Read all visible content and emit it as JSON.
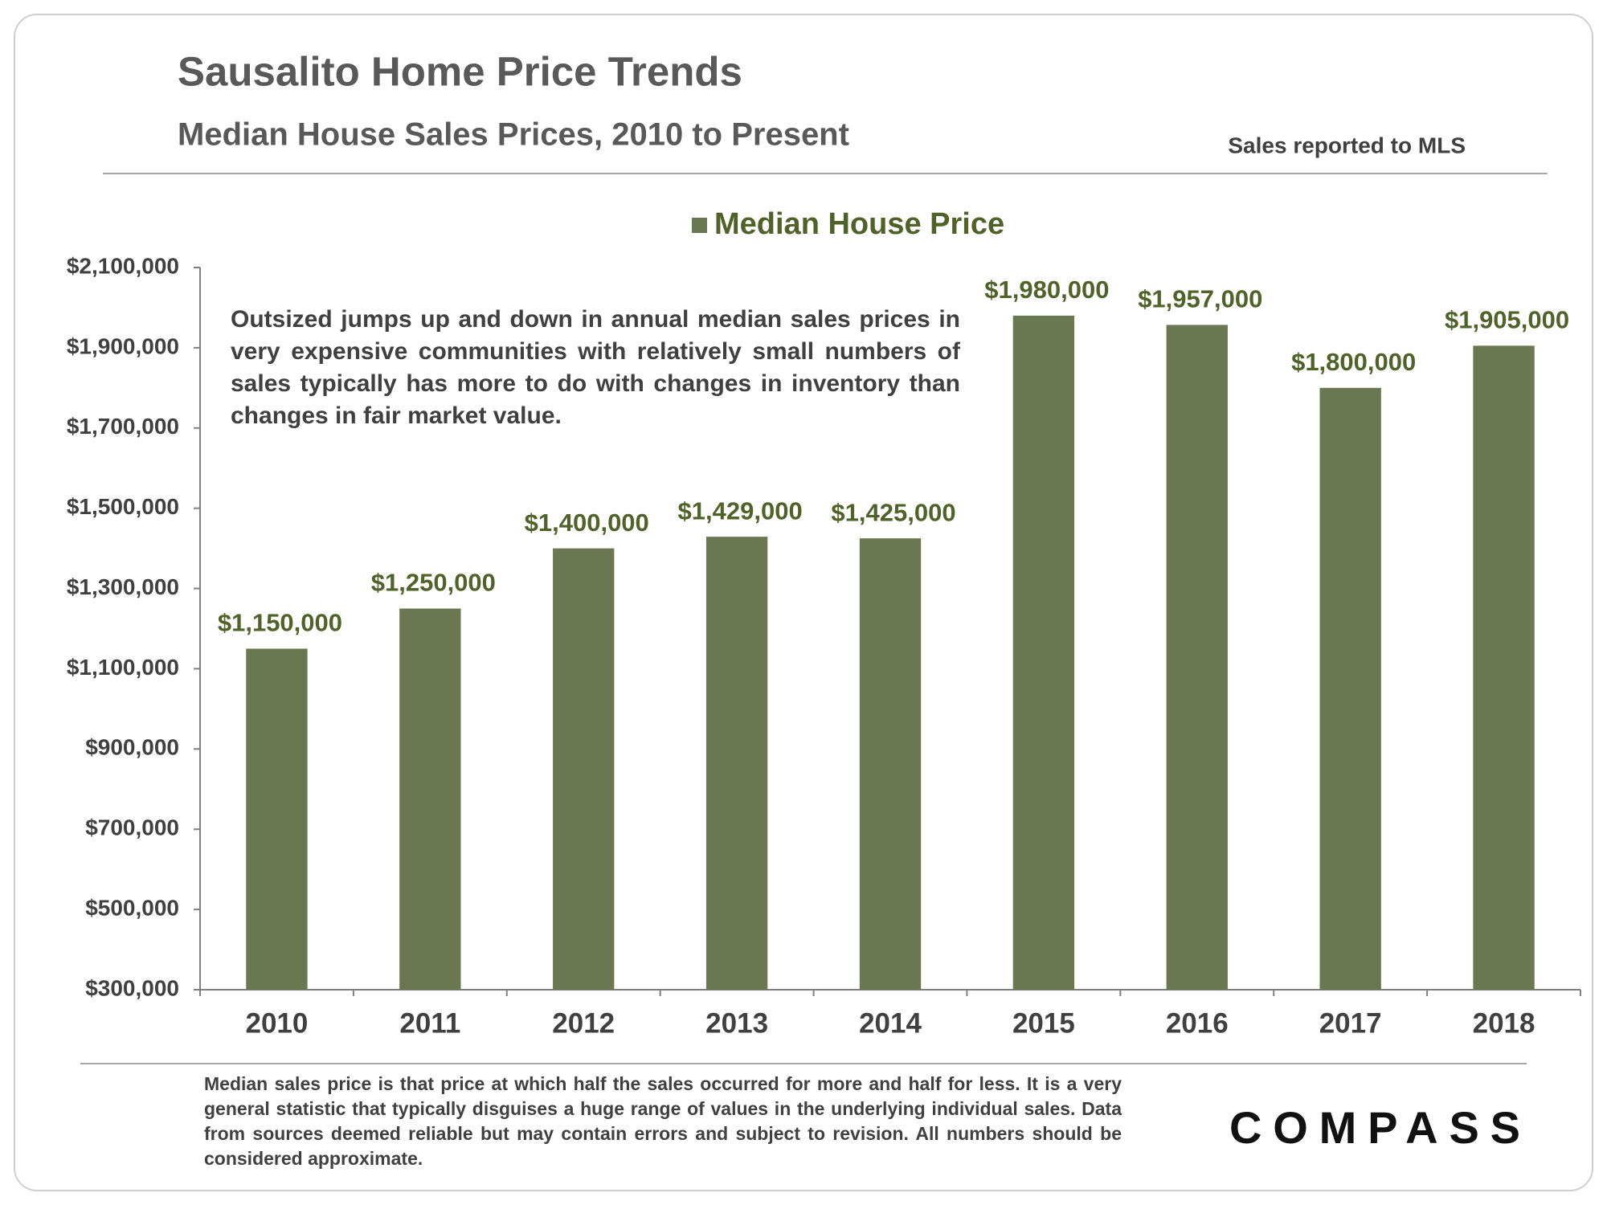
{
  "chart_data": {
    "type": "bar",
    "title": "Sausalito Home Price Trends",
    "subtitle": "Median House Sales Prices, 2010 to Present",
    "source": "Sales reported to MLS",
    "note": "Outsized jumps up and down in annual median sales prices in very expensive communities with relatively small numbers of sales typically has more to do with changes in inventory than changes in fair market value.",
    "footnote": "Median sales price is that price at which half the sales occurred for more and half for less. It is a very general statistic that typically disguises a huge range of values in the underlying individual sales. Data from sources deemed reliable but may contain errors and subject to revision. All numbers should be considered approximate.",
    "logo": "COMPASS",
    "categories": [
      "2010",
      "2011",
      "2012",
      "2013",
      "2014",
      "2015",
      "2016",
      "2017",
      "2018"
    ],
    "series": [
      {
        "name": "Median House Price",
        "color": "#6b7750",
        "values": [
          1150000,
          1250000,
          1400000,
          1429000,
          1425000,
          1980000,
          1957000,
          1800000,
          1905000
        ],
        "value_labels": [
          "$1,150,000",
          "$1,250,000",
          "$1,400,000",
          "$1,429,000",
          "$1,425,000",
          "$1,980,000",
          "$1,957,000",
          "$1,800,000",
          "$1,905,000"
        ]
      }
    ],
    "ylim": [
      300000,
      2100000
    ],
    "yticks": [
      {
        "value": 300000,
        "label": "$300,000"
      },
      {
        "value": 500000,
        "label": "$500,000"
      },
      {
        "value": 700000,
        "label": "$700,000"
      },
      {
        "value": 900000,
        "label": "$900,000"
      },
      {
        "value": 1100000,
        "label": "$1,100,000"
      },
      {
        "value": 1300000,
        "label": "$1,300,000"
      },
      {
        "value": 1500000,
        "label": "$1,500,000"
      },
      {
        "value": 1700000,
        "label": "$1,700,000"
      },
      {
        "value": 1900000,
        "label": "$1,900,000"
      },
      {
        "value": 2100000,
        "label": "$2,100,000"
      }
    ],
    "grid": false,
    "legend": "top"
  }
}
